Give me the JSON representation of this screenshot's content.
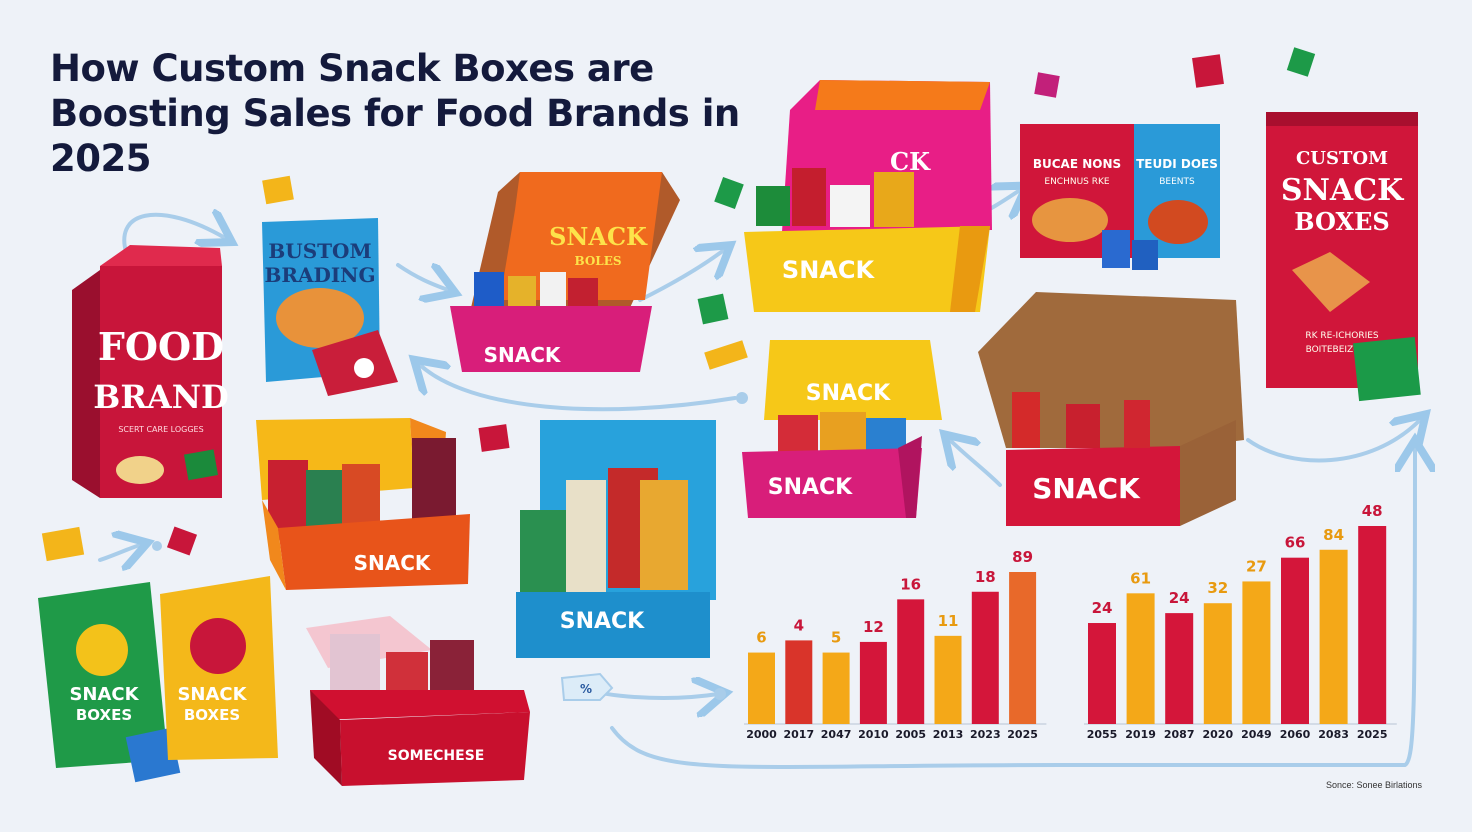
{
  "title_line1": "How Custom Snack Boxes are",
  "title_line2": "Boosting Sales for Food Brands in",
  "title_line3": "2025",
  "food_bag": {
    "line1": "FOOD",
    "line2": "BRAND",
    "small": "SCERT CARE LOGGES"
  },
  "custom_branding_bag": {
    "line1": "BUSTOM",
    "line2": "BRADING"
  },
  "snack_bags": [
    {
      "line1": "SNACK",
      "line2": "BOXES"
    },
    {
      "line1": "SNACK",
      "line2": "BOXES"
    }
  ],
  "boxes": [
    {
      "lid": "SNACK",
      "lid2": "BOLES",
      "front": "SNACK",
      "color": "#d81e7a"
    },
    {
      "lid": "",
      "lid2": "",
      "front": "SNACK",
      "color": "#f3c316"
    },
    {
      "lid": "SNACK",
      "lid2": "",
      "front": "SNACK",
      "color": "#d81e7a"
    },
    {
      "lid": "",
      "lid2": "",
      "front": "SNACK",
      "color": "#d7193a"
    },
    {
      "lid": "",
      "lid2": "",
      "front": "SNACK",
      "color": "#e86a1a"
    },
    {
      "lid": "",
      "lid2": "",
      "front": "SNACK",
      "color": "#1e9fd8"
    },
    {
      "lid": "",
      "lid2": "",
      "front": "SOMECHESE",
      "color": "#c8102e"
    }
  ],
  "bag_pair": [
    {
      "line1": "BUCAE NONS",
      "line2": "ENCHNUS RKE"
    },
    {
      "line1": "TEUDI DOES",
      "line2": "BEENTS"
    }
  ],
  "custom_bag": {
    "line1": "CUSTOM",
    "line2": "SNACK",
    "line3": "BOXES",
    "small1": "RK RE-ICHORIES",
    "small2": "BOITEBEIZONES"
  },
  "percent_tag": "%",
  "chart_data": [
    {
      "type": "bar",
      "categories": [
        "2000",
        "2017",
        "2047",
        "2010",
        "2005",
        "2013",
        "2023",
        "2025"
      ],
      "values": [
        6,
        4,
        5,
        12,
        16,
        11,
        18,
        89
      ],
      "data_labels": [
        "6",
        "4",
        "5",
        "12",
        "16",
        "11",
        "18",
        "89"
      ],
      "heights_rel": [
        0.47,
        0.55,
        0.47,
        0.54,
        0.82,
        0.58,
        0.87,
        1.0
      ],
      "colors": [
        "#f4a818",
        "#d9342a",
        "#f4a818",
        "#d4163a",
        "#d4163a",
        "#f4a818",
        "#d4163a",
        "#e8692a"
      ]
    },
    {
      "type": "bar",
      "categories": [
        "2055",
        "2019",
        "2087",
        "2020",
        "2049",
        "2060",
        "2083",
        "2025"
      ],
      "values": [
        24,
        61,
        24,
        32,
        27,
        66,
        84,
        48
      ],
      "data_labels": [
        "24",
        "61",
        "24",
        "32",
        "27",
        "66",
        "84",
        "48"
      ],
      "heights_rel": [
        0.51,
        0.66,
        0.56,
        0.61,
        0.72,
        0.84,
        0.88,
        1.0
      ],
      "colors": [
        "#d4163a",
        "#f4a818",
        "#d4163a",
        "#f4a818",
        "#f4a818",
        "#d4163a",
        "#f4a818",
        "#d4163a"
      ]
    }
  ],
  "source": "Sonce: Sonee Birlations"
}
